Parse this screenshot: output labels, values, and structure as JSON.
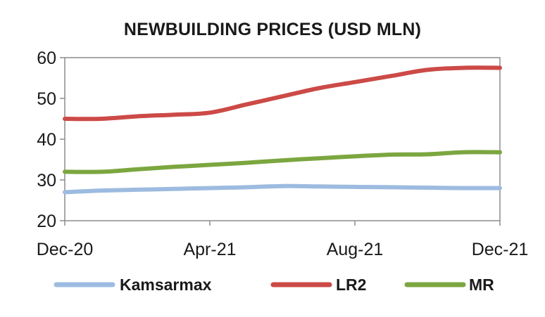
{
  "chart_data": {
    "type": "line",
    "title": "NEWBUILDING PRICES (USD MLN)",
    "xlabel": "",
    "ylabel": "",
    "ylim": [
      20,
      60
    ],
    "yticks": [
      20,
      30,
      40,
      50,
      60
    ],
    "x": [
      "Dec-20",
      "Jan-21",
      "Feb-21",
      "Mar-21",
      "Apr-21",
      "May-21",
      "Jun-21",
      "Jul-21",
      "Aug-21",
      "Sep-21",
      "Oct-21",
      "Nov-21",
      "Dec-21"
    ],
    "xtick_labels": [
      "Dec-20",
      "Apr-21",
      "Aug-21",
      "Dec-21"
    ],
    "xtick_positions": [
      0,
      4,
      8,
      12
    ],
    "grid": false,
    "legend_position": "bottom",
    "series": [
      {
        "name": "Kamsarmax",
        "color": "#9dbbe0",
        "values": [
          27,
          27.4,
          27.6,
          27.8,
          28,
          28.2,
          28.5,
          28.4,
          28.3,
          28.2,
          28.1,
          28,
          28
        ]
      },
      {
        "name": "LR2",
        "color": "#cc4a47",
        "values": [
          45,
          45,
          45.6,
          46,
          46.5,
          48.5,
          50.5,
          52.5,
          54,
          55.5,
          57,
          57.5,
          57.5
        ]
      },
      {
        "name": "MR",
        "color": "#7ca63f",
        "values": [
          32,
          32,
          32.6,
          33.2,
          33.7,
          34.2,
          34.8,
          35.3,
          35.8,
          36.2,
          36.3,
          36.8,
          36.8
        ]
      }
    ]
  }
}
